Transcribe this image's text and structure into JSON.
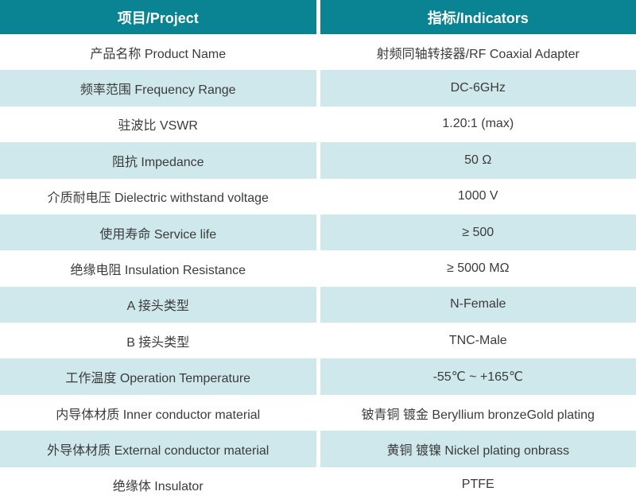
{
  "table": {
    "header": {
      "project": "项目/Project",
      "indicators": "指标/Indicators"
    },
    "rows": [
      {
        "project": "产品名称 Product Name",
        "indicator": "射频同轴转接器/RF Coaxial Adapter"
      },
      {
        "project": "频率范围 Frequency Range",
        "indicator": "DC-6GHz"
      },
      {
        "project": "驻波比 VSWR",
        "indicator": "1.20:1 (max)"
      },
      {
        "project": "阻抗 Impedance",
        "indicator": "50 Ω"
      },
      {
        "project": "介质耐电压 Dielectric withstand voltage",
        "indicator": "1000 V"
      },
      {
        "project": "使用寿命 Service life",
        "indicator": "≥ 500"
      },
      {
        "project": "绝缘电阻 Insulation Resistance",
        "indicator": "≥ 5000 MΩ"
      },
      {
        "project": "A 接头类型",
        "indicator": "N-Female"
      },
      {
        "project": "B 接头类型",
        "indicator": "TNC-Male"
      },
      {
        "project": "工作温度 Operation Temperature",
        "indicator": "-55℃ ~ +165℃"
      },
      {
        "project": "内导体材质 Inner conductor material",
        "indicator": "铍青铜 镀金 Beryllium bronzeGold plating"
      },
      {
        "project": "外导体材质 External conductor material",
        "indicator": "黄铜 镀镍 Nickel plating onbrass"
      },
      {
        "project": "绝缘体 Insulator",
        "indicator": "PTFE"
      }
    ],
    "colors": {
      "header_bg": "#0a8492",
      "header_text": "#ffffff",
      "stripe_bg": "#cfe8ec",
      "row_bg": "#ffffff",
      "body_text": "#3b3b3b"
    }
  }
}
